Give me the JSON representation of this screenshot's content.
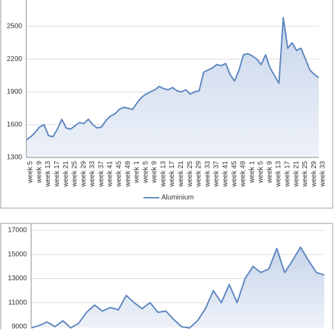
{
  "chart_data": [
    {
      "type": "line",
      "categories": [
        "week  5",
        null,
        "week  9",
        null,
        "week  13",
        null,
        "week  17",
        null,
        "week  21",
        null,
        "week  25",
        null,
        "week  29",
        null,
        "week  33",
        null,
        "week  37",
        null,
        "week  41",
        null,
        "week  45",
        null,
        "week  49",
        null,
        "week  1",
        null,
        "week  5",
        null,
        "week  9",
        null,
        "week  13",
        null,
        "week  17",
        null,
        "week  21",
        null,
        "week  25",
        null,
        "week  29",
        null,
        "week  33",
        null,
        "week  37",
        null,
        "week  41",
        null,
        "week  45",
        null,
        "week  49",
        null,
        "week  1",
        null,
        "week  5",
        null,
        "week  9",
        null,
        "week  13",
        null,
        "week  17",
        null,
        "week  21",
        null,
        "week  25",
        null,
        "week  29",
        null,
        "week  33"
      ],
      "series": [
        {
          "name": "Aluminium",
          "color": "#5b86bf",
          "values": [
            1460,
            1490,
            1530,
            1580,
            1600,
            1500,
            1490,
            1560,
            1650,
            1570,
            1560,
            1590,
            1620,
            1610,
            1650,
            1600,
            1570,
            1580,
            1640,
            1680,
            1700,
            1740,
            1760,
            1750,
            1740,
            1800,
            1850,
            1880,
            1900,
            1920,
            1950,
            1930,
            1920,
            1940,
            1910,
            1900,
            1920,
            1880,
            1900,
            1910,
            2080,
            2100,
            2120,
            2150,
            2140,
            2160,
            2060,
            2000,
            2100,
            2240,
            2250,
            2230,
            2200,
            2150,
            2240,
            2120,
            2050,
            1980,
            2580,
            2300,
            2350,
            2280,
            2300,
            2200,
            2100,
            2060,
            2030
          ]
        }
      ],
      "ylim": [
        1300,
        2700
      ],
      "yticks": [
        1300,
        1600,
        1900,
        2200,
        2500
      ],
      "grid": true,
      "legend": "bottom"
    },
    {
      "type": "line",
      "categories": [
        null,
        null,
        null,
        null,
        null,
        null,
        null,
        null,
        null,
        null,
        null,
        null,
        null,
        null,
        null,
        null,
        null,
        null,
        null,
        null,
        null,
        null,
        null,
        null,
        null,
        null,
        null,
        null,
        null,
        null,
        null,
        null,
        null,
        null,
        null,
        null,
        null,
        null
      ],
      "series": [
        {
          "color": "#5b86bf",
          "values": [
            8900,
            9100,
            9400,
            9000,
            9500,
            8900,
            9300,
            10200,
            10800,
            10300,
            10600,
            10400,
            11600,
            11000,
            10500,
            11000,
            10200,
            10300,
            9600,
            9000,
            8900,
            9500,
            10500,
            12000,
            11000,
            12500,
            11000,
            13000,
            14000,
            13500,
            13800,
            15500,
            13500,
            14500,
            15600,
            14500,
            13500,
            13300
          ]
        }
      ],
      "ylim": [
        9000,
        17000
      ],
      "yticks": [
        9000,
        11000,
        13000,
        15000,
        17000
      ],
      "grid": true
    }
  ]
}
